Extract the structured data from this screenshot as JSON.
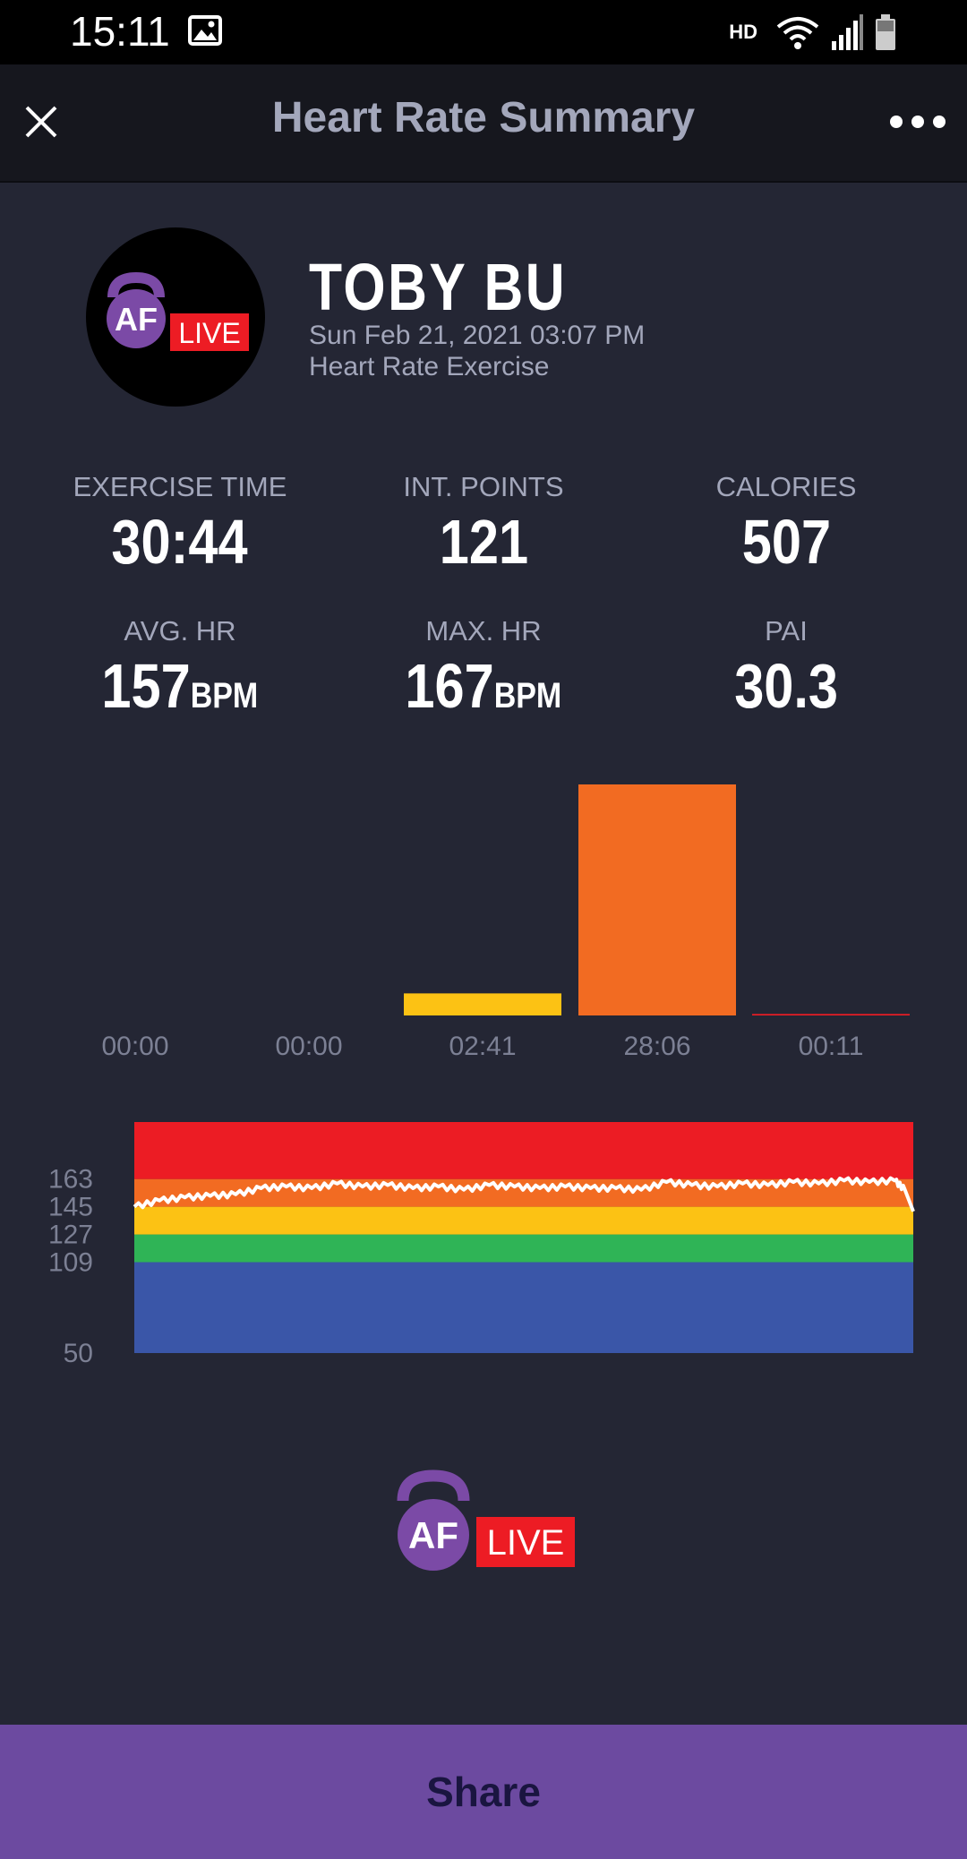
{
  "status_bar": {
    "time": "15:11",
    "network_label": "HD"
  },
  "app_bar": {
    "title": "Heart Rate Summary"
  },
  "profile": {
    "name": "TOBY BU",
    "date": "Sun Feb 21, 2021 03:07 PM",
    "exercise_type": "Heart Rate Exercise"
  },
  "logo": {
    "brand": "AF",
    "badge": "LIVE"
  },
  "stats": {
    "exercise_time": {
      "label": "EXERCISE TIME",
      "value": "30:44"
    },
    "int_points": {
      "label": "INT. POINTS",
      "value": "121"
    },
    "calories": {
      "label": "CALORIES",
      "value": "507"
    },
    "avg_hr": {
      "label": "AVG. HR",
      "value": "157",
      "unit": "BPM"
    },
    "max_hr": {
      "label": "MAX. HR",
      "value": "167",
      "unit": "BPM"
    },
    "pai": {
      "label": "PAI",
      "value": "30.3"
    }
  },
  "chart_data": [
    {
      "type": "bar",
      "categories": [
        "00:00",
        "00:00",
        "02:41",
        "28:06",
        "00:11"
      ],
      "values": [
        0,
        0,
        161,
        1686,
        11
      ],
      "colors": [
        "#3a56a8",
        "#2fb456",
        "#fcc214",
        "#f26b22",
        "#ec1c24"
      ]
    },
    {
      "type": "line",
      "yticks": [
        163,
        145,
        127,
        109,
        50
      ],
      "zones": [
        {
          "min": 50,
          "max": 109,
          "color": "#3a56a8"
        },
        {
          "min": 109,
          "max": 127,
          "color": "#2fb456"
        },
        {
          "min": 127,
          "max": 145,
          "color": "#fcc214"
        },
        {
          "min": 145,
          "max": 163,
          "color": "#f26b22"
        },
        {
          "min": 163,
          "max": 200,
          "color": "#ec1c24"
        }
      ],
      "ylim": [
        50,
        200
      ],
      "xlim": [
        0,
        30.73
      ],
      "series": [
        {
          "x": [
            0,
            1,
            2,
            3,
            4,
            5,
            6,
            7,
            8,
            9,
            10,
            11,
            12,
            13,
            14,
            15,
            16,
            17,
            18,
            19,
            20,
            21,
            22,
            23,
            24,
            25,
            26,
            27,
            28,
            29,
            30,
            30.4,
            30.73
          ],
          "y": [
            145,
            149,
            151,
            152,
            153,
            157,
            158,
            157,
            160,
            158,
            159,
            157,
            158,
            156,
            159,
            158,
            157,
            158,
            157,
            157,
            156,
            161,
            159,
            158,
            160,
            159,
            161,
            160,
            162,
            161,
            162,
            156,
            142
          ]
        }
      ]
    }
  ],
  "share": {
    "label": "Share"
  }
}
